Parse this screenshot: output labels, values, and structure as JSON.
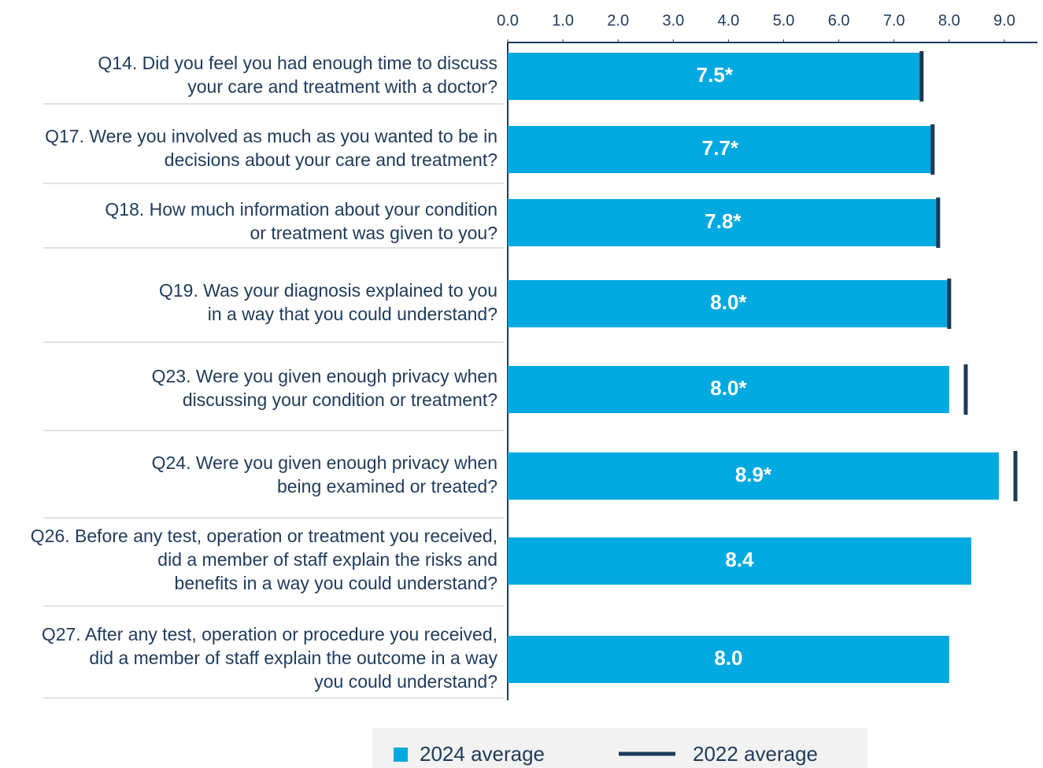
{
  "chart_data": {
    "type": "bar",
    "orientation": "horizontal",
    "categories": [
      [
        "Q14. Did you feel you had enough time to discuss",
        "your care and treatment with a doctor?"
      ],
      [
        "Q17. Were you involved as much as you wanted to be in",
        "decisions about your care and treatment?"
      ],
      [
        "Q18. How much information about your condition",
        "or treatment was given to you?"
      ],
      [
        "Q19. Was your diagnosis explained to you",
        "in a way that you could understand?"
      ],
      [
        "Q23. Were you given enough privacy when",
        "discussing your condition or treatment?"
      ],
      [
        "Q24. Were you given enough privacy when",
        "being examined or treated?"
      ],
      [
        "Q26. Before any test, operation or treatment you received,",
        "did a member of staff explain the risks and",
        "benefits in a way you could understand?"
      ],
      [
        "Q27. After any test, operation or procedure you received,",
        "did a member of staff explain the outcome in a way",
        "you could understand?"
      ]
    ],
    "series": [
      {
        "name": "2024 average",
        "color": "#00a9e0",
        "values": [
          7.5,
          7.7,
          7.8,
          8.0,
          8.0,
          8.9,
          8.4,
          8.0
        ],
        "value_labels": [
          "7.5*",
          "7.7*",
          "7.8*",
          "8.0*",
          "8.0*",
          "8.9*",
          "8.4",
          "8.0"
        ]
      },
      {
        "name": "2022 average",
        "color": "#1b3a57",
        "style": "marker",
        "values": [
          7.5,
          7.7,
          7.8,
          8.0,
          8.3,
          9.2,
          null,
          null
        ]
      }
    ],
    "xlim": [
      0,
      9.6
    ],
    "xticks": [
      {
        "value": 0,
        "label": "0.0"
      },
      {
        "value": 1,
        "label": "1.0"
      },
      {
        "value": 2,
        "label": "2.0"
      },
      {
        "value": 3,
        "label": "3.0"
      },
      {
        "value": 4,
        "label": "4.0"
      },
      {
        "value": 5,
        "label": "5.0"
      },
      {
        "value": 6,
        "label": "6.0"
      },
      {
        "value": 7,
        "label": "7.0"
      },
      {
        "value": 8,
        "label": "8.0"
      },
      {
        "value": 9,
        "label": "9.0"
      }
    ],
    "legend": "bottom"
  }
}
